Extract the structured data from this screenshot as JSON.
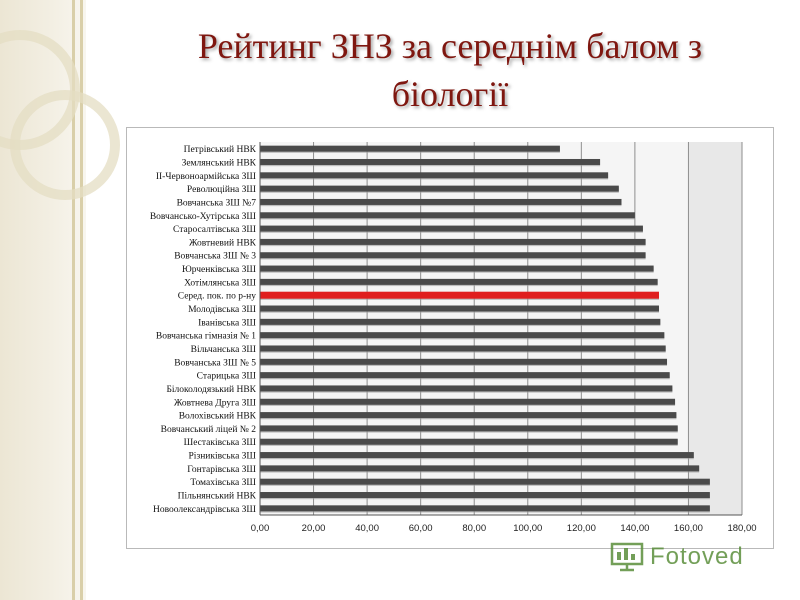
{
  "title_line1": "Рейтинг ЗНЗ за середнім балом з",
  "title_line2": "біології",
  "colors": {
    "title": "#7f1710",
    "bar": "#4a4a4a",
    "highlight": "#e01f1f",
    "plot_bg": "#e8e8e8",
    "watermark": "#5b8f3c"
  },
  "watermark": {
    "text": "Fotoved",
    "icon": "presentation-icon"
  },
  "chart_data": {
    "type": "bar",
    "orientation": "horizontal",
    "xlim": [
      0,
      180
    ],
    "xticks": [
      "0,00",
      "20,00",
      "40,00",
      "60,00",
      "80,00",
      "100,00",
      "120,00",
      "140,00",
      "160,00",
      "180,00"
    ],
    "grid": "vertical",
    "categories": [
      "Петрівський НВК",
      "Землянський НВК",
      "ІІ-Червоноармійська ЗШ",
      "Революційна ЗШ",
      "Вовчанська ЗШ №7",
      "Вовчансько-Хутірська ЗШ",
      "Старосалтівська ЗШ",
      "Жовтневий НВК",
      "Вовчанська ЗШ № 3",
      "Юрченківська ЗШ",
      "Хотімлянська ЗШ",
      "Серед. пок. по р-ну",
      "Молодівська ЗШ",
      "Іванівська ЗШ",
      "Вовчанська гімназія № 1",
      "Вільчанська ЗШ",
      "Вовчанська ЗШ № 5",
      "Старицька ЗШ",
      "Білоколодязький НВК",
      "Жовтнева Друга ЗШ",
      "Волохівський НВК",
      "Вовчанський ліцей № 2",
      "Шестаківська ЗШ",
      "Різниківська ЗШ",
      "Гонтарівська ЗШ",
      "Томахівська ЗШ",
      "Пільнянський НВК",
      "Новоолександрівська ЗШ"
    ],
    "values": [
      112,
      127,
      130,
      134,
      135,
      140,
      143,
      144,
      144,
      147,
      148.5,
      149,
      149,
      149.5,
      151,
      151.5,
      152,
      153,
      154,
      155,
      155.5,
      156,
      156,
      162,
      164,
      168,
      168,
      168
    ],
    "highlight_index": 11
  }
}
